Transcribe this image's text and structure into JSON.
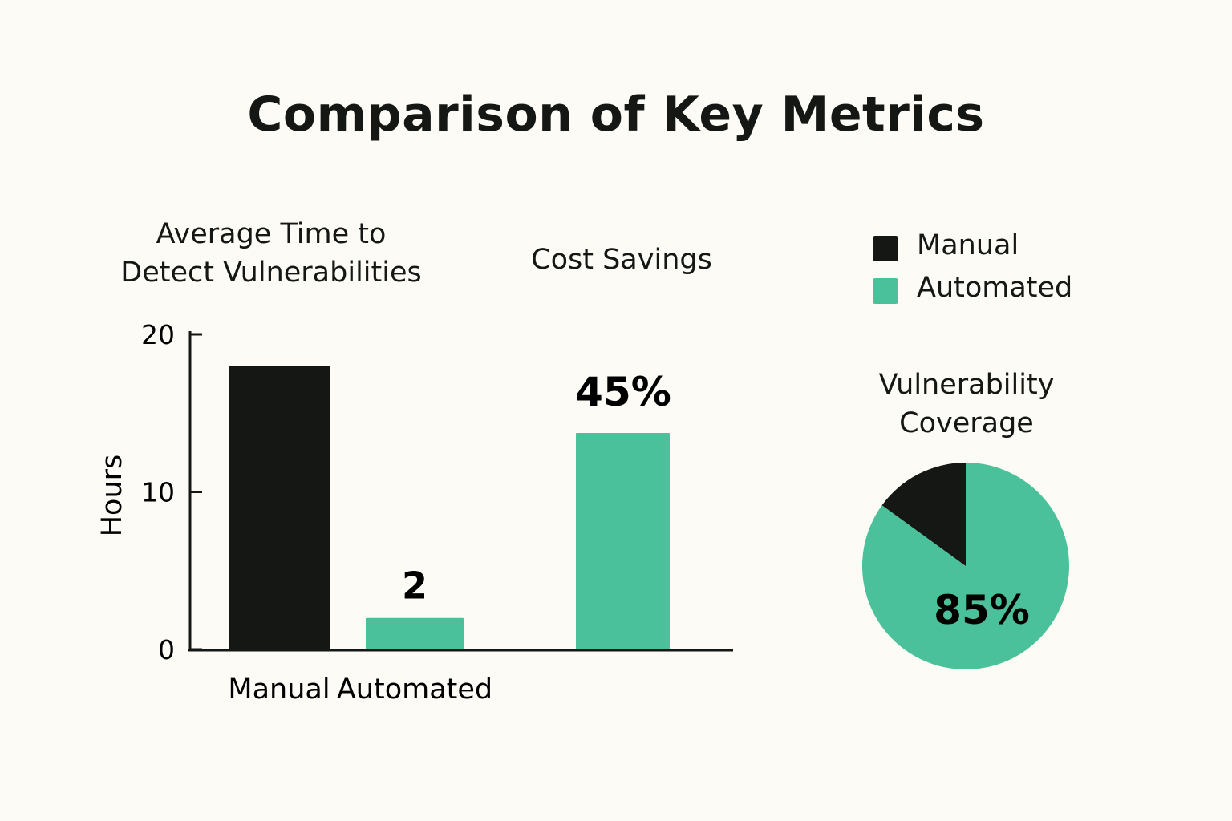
{
  "title": "Comparison of Key Metrics",
  "legend": [
    {
      "label": "Manual",
      "color": "#151714"
    },
    {
      "label": "Automated",
      "color": "#4ac19a"
    }
  ],
  "chart_data": [
    {
      "type": "bar",
      "title_lines": [
        "Average Time to",
        "Detect Vulnerabilities"
      ],
      "ylabel": "Hours",
      "ylim": [
        0,
        20
      ],
      "yticks": [
        0,
        10,
        20
      ],
      "categories": [
        "Manual",
        "Automated"
      ],
      "values": [
        18,
        2
      ],
      "colors": [
        "#151714",
        "#4ac19a"
      ],
      "data_labels": [
        "",
        "2"
      ]
    },
    {
      "type": "bar",
      "title": "Cost Savings",
      "categories": [
        "Automated"
      ],
      "values": [
        45
      ],
      "unit": "%",
      "colors": [
        "#4ac19a"
      ],
      "data_labels": [
        "45%"
      ]
    },
    {
      "type": "pie",
      "title_lines": [
        "Vulnerability",
        "Coverage"
      ],
      "slices": [
        {
          "name": "Automated",
          "value": 85,
          "color": "#4ac19a",
          "label": "85%"
        },
        {
          "name": "Manual",
          "value": 15,
          "color": "#151714",
          "label": ""
        }
      ]
    }
  ]
}
